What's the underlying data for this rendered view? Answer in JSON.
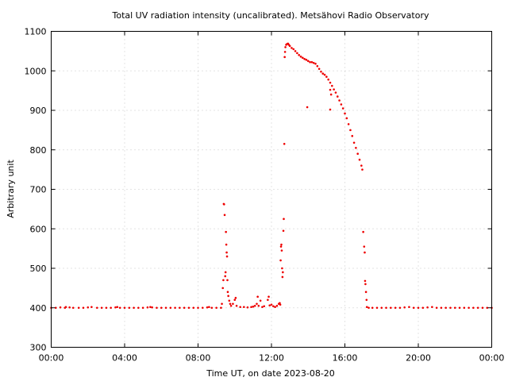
{
  "chart_data": {
    "type": "scatter",
    "title": "Total UV radiation intensity (uncalibrated). Metsähovi Radio Observatory",
    "xlabel": "Time UT, on date 2023-08-20",
    "ylabel": "Arbitrary unit",
    "xlim": [
      0,
      24
    ],
    "ylim": [
      300,
      1100
    ],
    "x_unit": "hours UT",
    "x_ticks": [
      0,
      4,
      8,
      12,
      16,
      20,
      24
    ],
    "x_tick_labels": [
      "00:00",
      "04:00",
      "08:00",
      "12:00",
      "16:00",
      "20:00",
      "00:00"
    ],
    "y_ticks": [
      300,
      400,
      500,
      600,
      700,
      800,
      900,
      1000,
      1100
    ],
    "y_tick_labels": [
      "300",
      "400",
      "500",
      "600",
      "700",
      "800",
      "900",
      "1000",
      "1100"
    ],
    "grid": true,
    "color": "#ee0000",
    "series": [
      {
        "name": "",
        "points": [
          [
            0.0,
            400
          ],
          [
            0.25,
            400
          ],
          [
            0.5,
            401
          ],
          [
            0.75,
            400
          ],
          [
            0.8,
            402
          ],
          [
            1.0,
            401
          ],
          [
            1.2,
            400
          ],
          [
            1.5,
            400
          ],
          [
            1.75,
            400
          ],
          [
            2.0,
            401
          ],
          [
            2.2,
            402
          ],
          [
            2.5,
            400
          ],
          [
            2.75,
            400
          ],
          [
            3.0,
            400
          ],
          [
            3.25,
            400
          ],
          [
            3.5,
            401
          ],
          [
            3.6,
            402
          ],
          [
            3.75,
            400
          ],
          [
            4.0,
            400
          ],
          [
            4.25,
            400
          ],
          [
            4.5,
            400
          ],
          [
            4.75,
            400
          ],
          [
            5.0,
            400
          ],
          [
            5.25,
            401
          ],
          [
            5.4,
            402
          ],
          [
            5.5,
            401
          ],
          [
            5.75,
            400
          ],
          [
            6.0,
            400
          ],
          [
            6.25,
            400
          ],
          [
            6.5,
            400
          ],
          [
            6.75,
            400
          ],
          [
            7.0,
            400
          ],
          [
            7.25,
            400
          ],
          [
            7.5,
            400
          ],
          [
            7.75,
            400
          ],
          [
            8.0,
            400
          ],
          [
            8.25,
            400
          ],
          [
            8.5,
            401
          ],
          [
            8.6,
            402
          ],
          [
            8.75,
            400
          ],
          [
            9.0,
            400
          ],
          [
            9.25,
            400
          ],
          [
            9.3,
            410
          ],
          [
            9.35,
            450
          ],
          [
            9.38,
            470
          ],
          [
            9.4,
            663
          ],
          [
            9.42,
            662
          ],
          [
            9.45,
            635
          ],
          [
            9.48,
            480
          ],
          [
            9.5,
            490
          ],
          [
            9.52,
            592
          ],
          [
            9.54,
            560
          ],
          [
            9.56,
            540
          ],
          [
            9.58,
            530
          ],
          [
            9.6,
            470
          ],
          [
            9.62,
            440
          ],
          [
            9.65,
            430
          ],
          [
            9.7,
            418
          ],
          [
            9.75,
            410
          ],
          [
            9.8,
            405
          ],
          [
            9.9,
            410
          ],
          [
            10.0,
            420
          ],
          [
            10.05,
            425
          ],
          [
            10.1,
            405
          ],
          [
            10.3,
            402
          ],
          [
            10.5,
            402
          ],
          [
            10.7,
            401
          ],
          [
            10.9,
            402
          ],
          [
            11.0,
            403
          ],
          [
            11.1,
            405
          ],
          [
            11.2,
            410
          ],
          [
            11.25,
            428
          ],
          [
            11.3,
            405
          ],
          [
            11.4,
            418
          ],
          [
            11.5,
            402
          ],
          [
            11.6,
            404
          ],
          [
            11.8,
            420
          ],
          [
            11.85,
            428
          ],
          [
            11.9,
            406
          ],
          [
            12.0,
            408
          ],
          [
            12.1,
            404
          ],
          [
            12.2,
            402
          ],
          [
            12.3,
            405
          ],
          [
            12.4,
            410
          ],
          [
            12.45,
            412
          ],
          [
            12.48,
            408
          ],
          [
            12.5,
            520
          ],
          [
            12.52,
            555
          ],
          [
            12.54,
            560
          ],
          [
            12.56,
            545
          ],
          [
            12.58,
            500
          ],
          [
            12.6,
            478
          ],
          [
            12.62,
            490
          ],
          [
            12.65,
            595
          ],
          [
            12.67,
            625
          ],
          [
            12.7,
            815
          ],
          [
            12.72,
            1035
          ],
          [
            12.74,
            1048
          ],
          [
            12.76,
            1060
          ],
          [
            12.8,
            1066
          ],
          [
            12.85,
            1068
          ],
          [
            12.9,
            1069
          ],
          [
            12.95,
            1066
          ],
          [
            13.0,
            1063
          ],
          [
            13.1,
            1058
          ],
          [
            13.2,
            1055
          ],
          [
            13.3,
            1050
          ],
          [
            13.4,
            1045
          ],
          [
            13.5,
            1040
          ],
          [
            13.6,
            1036
          ],
          [
            13.7,
            1033
          ],
          [
            13.8,
            1030
          ],
          [
            13.9,
            1028
          ],
          [
            14.0,
            1025
          ],
          [
            13.95,
            908
          ],
          [
            14.1,
            1022
          ],
          [
            14.2,
            1022
          ],
          [
            14.3,
            1020
          ],
          [
            14.4,
            1018
          ],
          [
            14.5,
            1012
          ],
          [
            14.6,
            1005
          ],
          [
            14.7,
            998
          ],
          [
            14.8,
            993
          ],
          [
            14.9,
            990
          ],
          [
            15.0,
            985
          ],
          [
            15.1,
            978
          ],
          [
            15.2,
            970
          ],
          [
            15.3,
            962
          ],
          [
            15.2,
            952
          ],
          [
            15.25,
            940
          ],
          [
            15.2,
            902
          ],
          [
            15.4,
            953
          ],
          [
            15.5,
            945
          ],
          [
            15.6,
            935
          ],
          [
            15.7,
            925
          ],
          [
            15.8,
            915
          ],
          [
            15.9,
            905
          ],
          [
            16.0,
            892
          ],
          [
            16.1,
            880
          ],
          [
            16.2,
            865
          ],
          [
            16.3,
            850
          ],
          [
            16.4,
            835
          ],
          [
            16.5,
            818
          ],
          [
            16.6,
            805
          ],
          [
            16.7,
            790
          ],
          [
            16.8,
            775
          ],
          [
            16.9,
            760
          ],
          [
            16.95,
            750
          ],
          [
            17.0,
            592
          ],
          [
            17.05,
            555
          ],
          [
            17.08,
            540
          ],
          [
            17.1,
            468
          ],
          [
            17.12,
            460
          ],
          [
            17.15,
            440
          ],
          [
            17.18,
            420
          ],
          [
            17.2,
            402
          ],
          [
            17.3,
            400
          ],
          [
            17.5,
            400
          ],
          [
            17.75,
            400
          ],
          [
            18.0,
            400
          ],
          [
            18.25,
            400
          ],
          [
            18.5,
            400
          ],
          [
            18.75,
            400
          ],
          [
            19.0,
            400
          ],
          [
            19.25,
            401
          ],
          [
            19.5,
            402
          ],
          [
            19.75,
            400
          ],
          [
            20.0,
            400
          ],
          [
            20.25,
            400
          ],
          [
            20.5,
            401
          ],
          [
            20.75,
            402
          ],
          [
            21.0,
            400
          ],
          [
            21.25,
            400
          ],
          [
            21.5,
            400
          ],
          [
            21.75,
            400
          ],
          [
            22.0,
            400
          ],
          [
            22.25,
            400
          ],
          [
            22.5,
            400
          ],
          [
            22.75,
            400
          ],
          [
            23.0,
            400
          ],
          [
            23.25,
            400
          ],
          [
            23.5,
            400
          ],
          [
            23.75,
            400
          ],
          [
            24.0,
            400
          ]
        ]
      }
    ]
  }
}
